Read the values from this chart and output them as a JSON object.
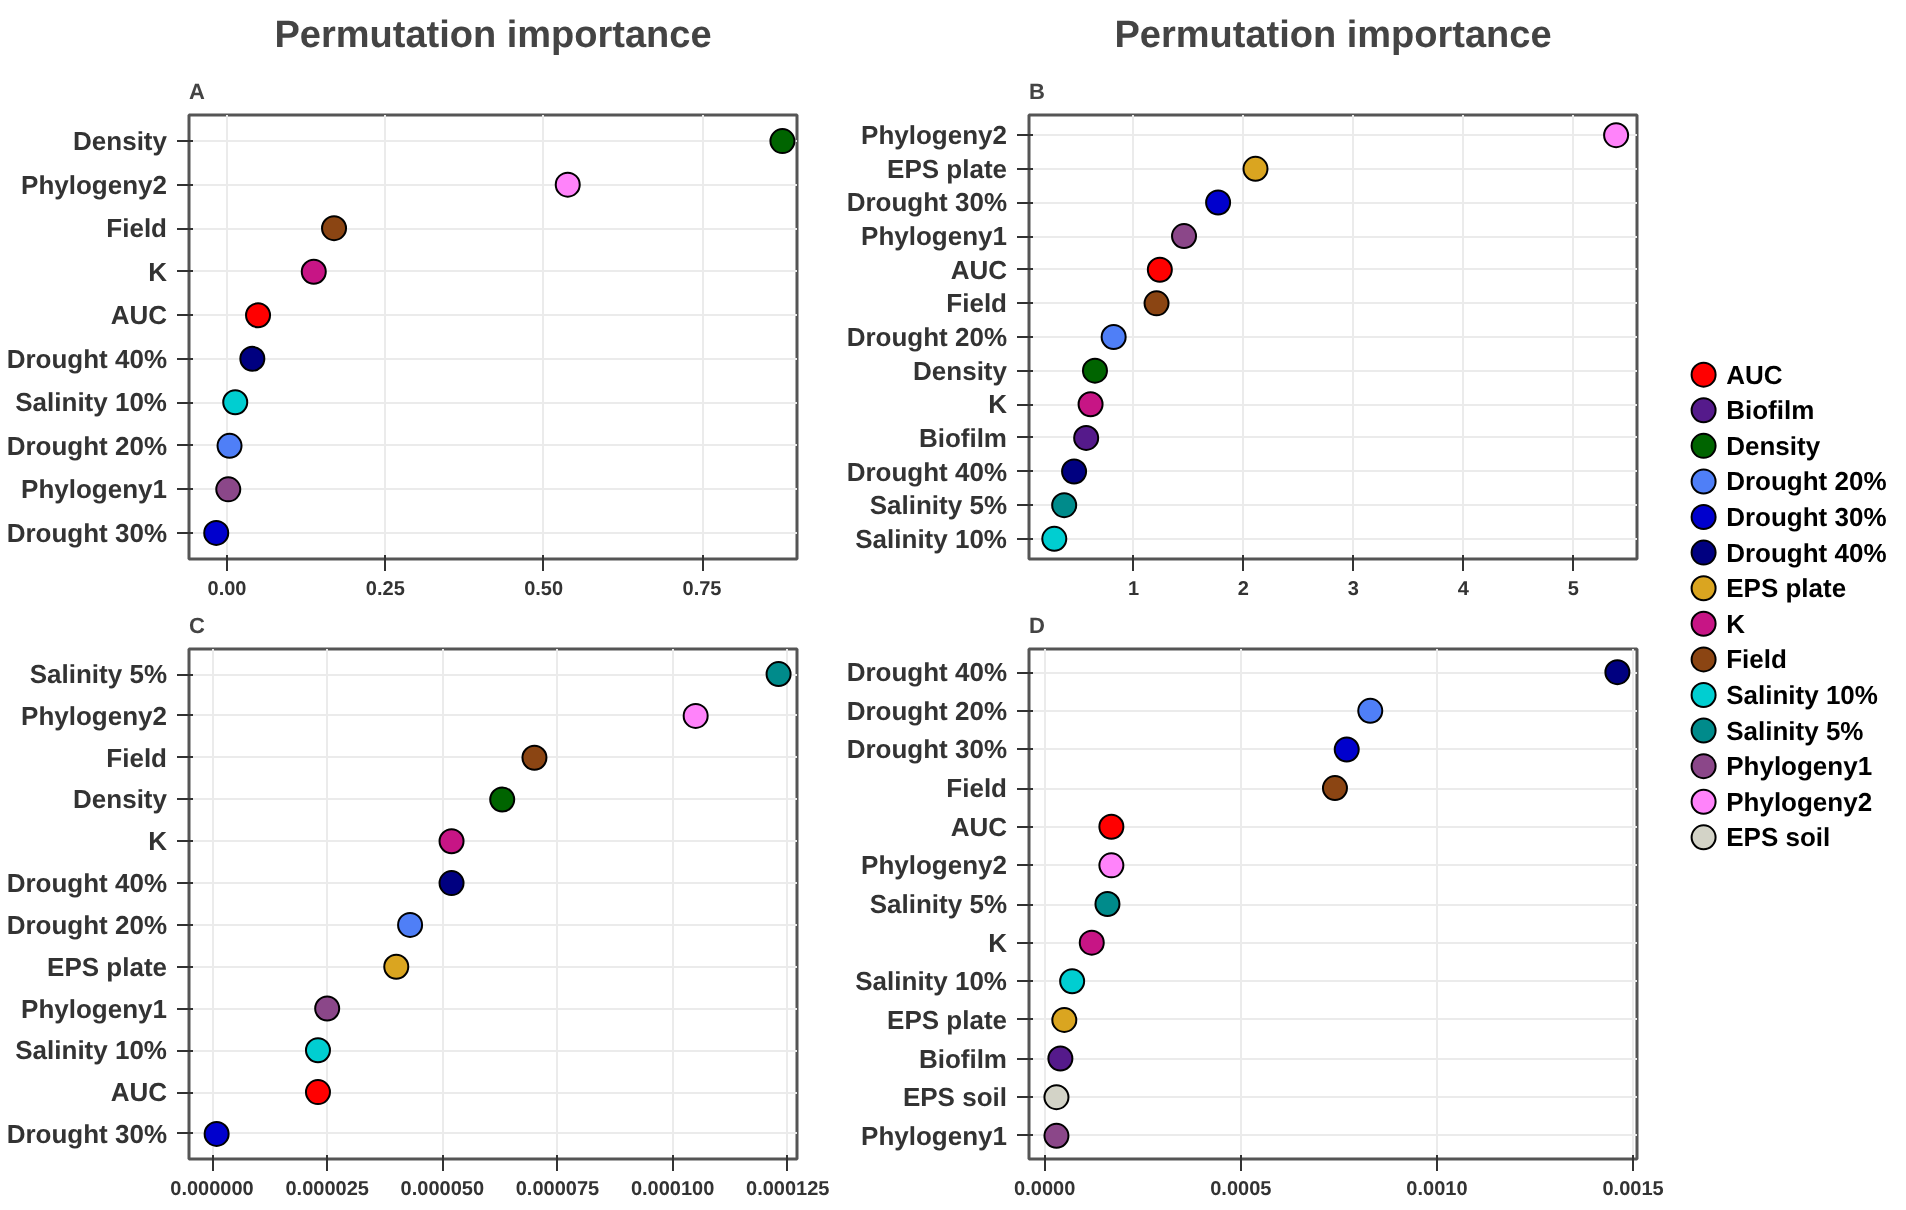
{
  "chart_data": [
    {
      "type": "scatter",
      "title": "Permutation importance",
      "annotations": [
        "A"
      ],
      "orientation": "horizontal",
      "marker": "circle",
      "grid": true,
      "categories": [
        "Density",
        "Phylogeny2",
        "Field",
        "K",
        "AUC",
        "Drought 40%",
        "Salinity 10%",
        "Drought 20%",
        "Phylogeny1",
        "Drought 30%"
      ],
      "values": [
        0.877,
        0.538,
        0.169,
        0.137,
        0.049,
        0.04,
        0.013,
        0.004,
        0.002,
        -0.017
      ],
      "colors": [
        "#006400",
        "#ff83fa",
        "#8b4513",
        "#c71585",
        "#ff0000",
        "#000080",
        "#00ced1",
        "#4f7ff7",
        "#8b4789",
        "#0000cd"
      ],
      "xlim": [
        -0.06,
        0.9
      ],
      "xticks": [
        {
          "value": 0,
          "label": "0.00"
        },
        0.25,
        {
          "value": 0.5,
          "label": "0.50"
        },
        0.75
      ]
    },
    {
      "type": "scatter",
      "title": "Permutation importance",
      "annotations": [
        "B"
      ],
      "orientation": "horizontal",
      "marker": "circle",
      "grid": true,
      "categories": [
        "Phylogeny2",
        "EPS plate",
        "Drought 30%",
        "Phylogeny1",
        "AUC",
        "Field",
        "Drought 20%",
        "Density",
        "K",
        "Biofilm",
        "Drought 40%",
        "Salinity 5%",
        "Salinity 10%"
      ],
      "values": [
        5.39,
        2.11,
        1.77,
        1.46,
        1.24,
        1.21,
        0.82,
        0.65,
        0.61,
        0.57,
        0.46,
        0.37,
        0.28
      ],
      "colors": [
        "#ff83fa",
        "#daa520",
        "#0000cd",
        "#8b4789",
        "#ff0000",
        "#8b4513",
        "#4f7ff7",
        "#006400",
        "#c71585",
        "#551a8b",
        "#000080",
        "#008b8b",
        "#00ced1"
      ],
      "xlim": [
        0.05,
        5.58
      ],
      "xticks": [
        1,
        2,
        3,
        4,
        5
      ]
    },
    {
      "type": "scatter",
      "annotations": [
        "C"
      ],
      "orientation": "horizontal",
      "marker": "circle",
      "grid": true,
      "categories": [
        "Salinity 5%",
        "Phylogeny2",
        "Field",
        "Density",
        "K",
        "Drought 40%",
        "Drought 20%",
        "EPS plate",
        "Phylogeny1",
        "Salinity 10%",
        "AUC",
        "Drought 30%"
      ],
      "values": [
        0.000123,
        0.000105,
        7e-05,
        6.3e-05,
        5.2e-05,
        5.2e-05,
        4.3e-05,
        4e-05,
        2.5e-05,
        2.3e-05,
        2.3e-05,
        1e-06
      ],
      "colors": [
        "#008b8b",
        "#ff83fa",
        "#8b4513",
        "#006400",
        "#c71585",
        "#000080",
        "#4f7ff7",
        "#daa520",
        "#8b4789",
        "#00ced1",
        "#ff0000",
        "#0000cd"
      ],
      "xlim": [
        -5e-06,
        0.000127
      ],
      "xticks": [
        {
          "value": 0,
          "label": "0.000000"
        },
        {
          "value": 2.5e-05,
          "label": "0.000025"
        },
        {
          "value": 5e-05,
          "label": "0.000050"
        },
        {
          "value": 7.5e-05,
          "label": "0.000075"
        },
        {
          "value": 0.0001,
          "label": "0.000100"
        },
        {
          "value": 0.000125,
          "label": "0.000125"
        }
      ]
    },
    {
      "type": "scatter",
      "annotations": [
        "D"
      ],
      "orientation": "horizontal",
      "marker": "circle",
      "grid": true,
      "categories": [
        "Drought 40%",
        "Drought 20%",
        "Drought 30%",
        "Field",
        "AUC",
        "Phylogeny2",
        "Salinity 5%",
        "K",
        "Salinity 10%",
        "EPS plate",
        "Biofilm",
        "EPS soil",
        "Phylogeny1"
      ],
      "values": [
        0.00146,
        0.00083,
        0.00077,
        0.00074,
        0.00017,
        0.00017,
        0.00016,
        0.00012,
        7e-05,
        5e-05,
        4e-05,
        3e-05,
        3e-05
      ],
      "colors": [
        "#000080",
        "#4f7ff7",
        "#0000cd",
        "#8b4513",
        "#ff0000",
        "#ff83fa",
        "#008b8b",
        "#c71585",
        "#00ced1",
        "#daa520",
        "#551a8b",
        "#d3d3c7",
        "#8b4789"
      ],
      "xlim": [
        -4e-05,
        0.00151
      ],
      "xticks": [
        {
          "value": 0,
          "label": "0.0000"
        },
        {
          "value": 0.0005,
          "label": "0.0005"
        },
        {
          "value": 0.001,
          "label": "0.0010"
        },
        {
          "value": 0.0015,
          "label": "0.0015"
        }
      ]
    },
    {
      "type": "other",
      "legend": "right",
      "series": [
        {
          "name": "AUC",
          "color": "#ff0000"
        },
        {
          "name": "Biofilm",
          "color": "#551a8b"
        },
        {
          "name": "Density",
          "color": "#006400"
        },
        {
          "name": "Drought 20%",
          "color": "#4f7ff7"
        },
        {
          "name": "Drought 30%",
          "color": "#0000cd"
        },
        {
          "name": "Drought 40%",
          "color": "#000080"
        },
        {
          "name": "EPS plate",
          "color": "#daa520"
        },
        {
          "name": "K",
          "color": "#c71585"
        },
        {
          "name": "Field",
          "color": "#8b4513"
        },
        {
          "name": "Salinity 10%",
          "color": "#00ced1"
        },
        {
          "name": "Salinity 5%",
          "color": "#008b8b"
        },
        {
          "name": "Phylogeny1",
          "color": "#8b4789"
        },
        {
          "name": "Phylogeny2",
          "color": "#ff83fa"
        },
        {
          "name": "EPS soil",
          "color": "#d3d3c7"
        }
      ]
    }
  ]
}
